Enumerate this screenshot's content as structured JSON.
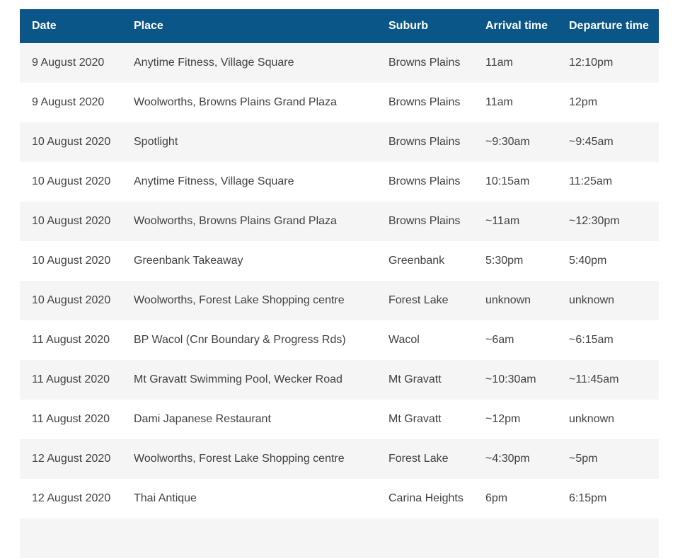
{
  "table": {
    "columns": [
      {
        "label": "Date"
      },
      {
        "label": "Place"
      },
      {
        "label": "Suburb"
      },
      {
        "label": "Arrival time"
      },
      {
        "label": "Departure time"
      }
    ],
    "rows": [
      [
        "9 August 2020",
        "Anytime Fitness, Village Square",
        "Browns Plains",
        "11am",
        "12:10pm"
      ],
      [
        "9 August 2020",
        "Woolworths, Browns Plains Grand Plaza",
        "Browns Plains",
        "11am",
        "12pm"
      ],
      [
        "10 August 2020",
        "Spotlight",
        "Browns Plains",
        "~9:30am",
        "~9:45am"
      ],
      [
        "10 August 2020",
        "Anytime Fitness, Village Square",
        "Browns Plains",
        "10:15am",
        "11:25am"
      ],
      [
        "10 August 2020",
        "Woolworths, Browns Plains Grand Plaza",
        "Browns Plains",
        "~11am",
        "~12:30pm"
      ],
      [
        "10 August 2020",
        "Greenbank Takeaway",
        "Greenbank",
        "5:30pm",
        "5:40pm"
      ],
      [
        "10 August 2020",
        "Woolworths, Forest Lake Shopping centre",
        "Forest Lake",
        "unknown",
        "unknown"
      ],
      [
        "11 August 2020",
        "BP Wacol (Cnr Boundary & Progress Rds)",
        "Wacol",
        "~6am",
        "~6:15am"
      ],
      [
        "11 August 2020",
        "Mt Gravatt Swimming Pool, Wecker Road",
        "Mt Gravatt",
        "~10:30am",
        "~11:45am"
      ],
      [
        "11 August 2020",
        "Dami Japanese Restaurant",
        "Mt Gravatt",
        "~12pm",
        "unknown"
      ],
      [
        "12 August 2020",
        "Woolworths, Forest Lake Shopping centre",
        "Forest Lake",
        "~4:30pm",
        "~5pm"
      ],
      [
        "12 August 2020",
        "Thai Antique",
        "Carina Heights",
        "6pm",
        "6:15pm"
      ]
    ],
    "colors": {
      "header_bg": "#0a5688",
      "header_text": "#ffffff",
      "row_bg": "#ffffff",
      "row_alt_bg": "#f5f5f5",
      "body_text": "#414141"
    }
  }
}
